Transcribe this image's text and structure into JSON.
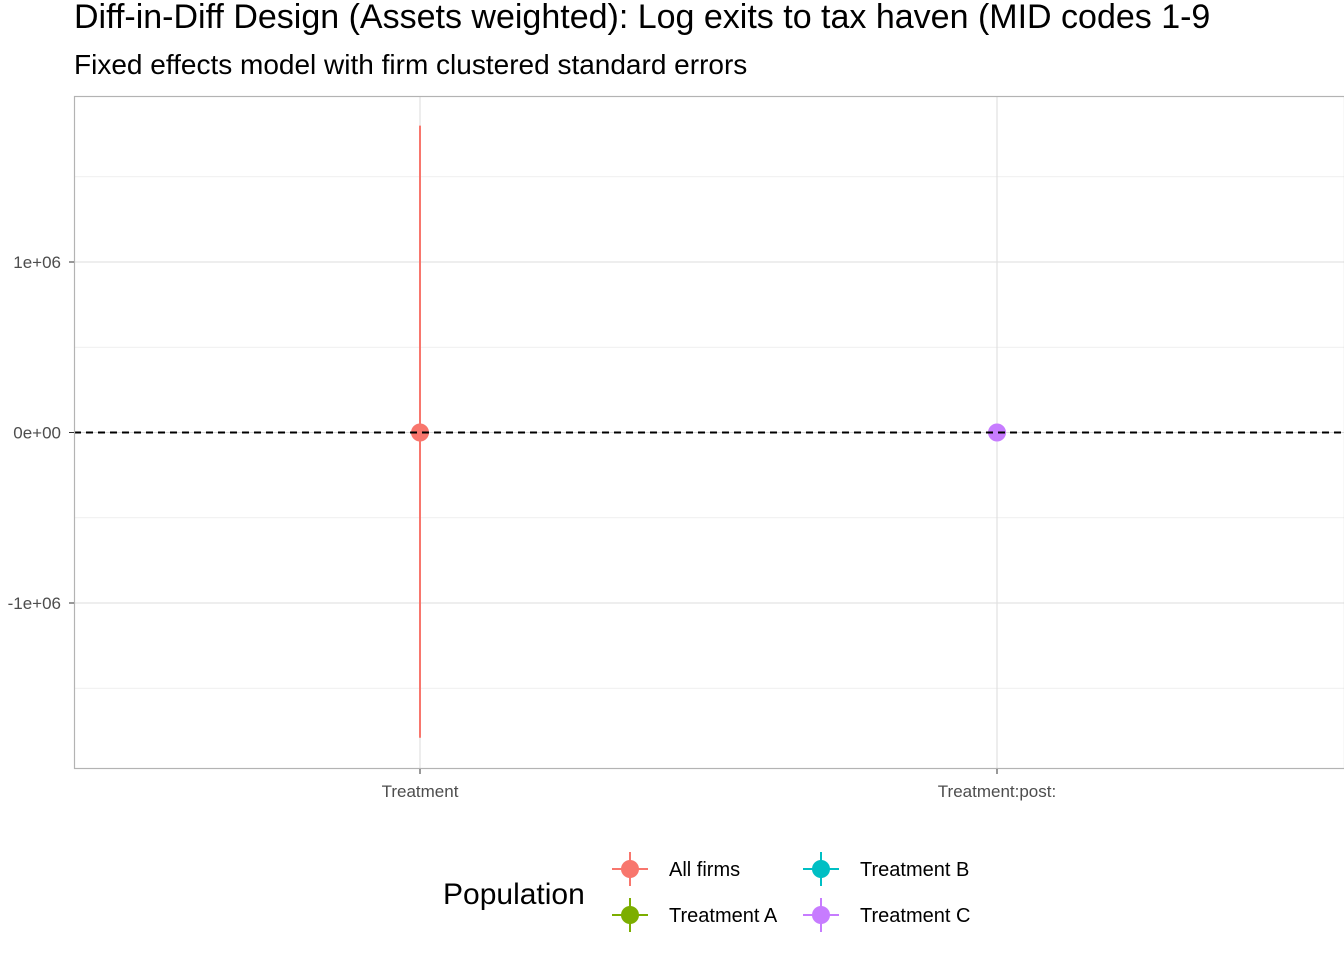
{
  "chart_data": {
    "type": "scatter",
    "title": "Diff-in-Diff Design (Assets weighted): Log exits to tax haven (MID codes 1-9",
    "subtitle": "Fixed effects model with firm clustered standard errors",
    "xlabel": "",
    "ylabel": "",
    "categories": [
      "Treatment",
      "Treatment:post:"
    ],
    "y_ticks": [
      -1000000,
      0,
      1000000
    ],
    "y_tick_labels": [
      "-1e+06",
      "0e+00",
      "1e+06"
    ],
    "ylim": [
      -1970000,
      1970000
    ],
    "grid": true,
    "reference_line": {
      "y": 0,
      "style": "dashed",
      "color": "#000000"
    },
    "series": [
      {
        "name": "All firms",
        "color": "#F8766D",
        "points": [
          {
            "category": "Treatment",
            "estimate": 0,
            "lower": -1790000,
            "upper": 1800000
          }
        ]
      },
      {
        "name": "Treatment A",
        "color": "#7CAE00",
        "points": []
      },
      {
        "name": "Treatment B",
        "color": "#00BFC4",
        "points": []
      },
      {
        "name": "Treatment C",
        "color": "#C77CFF",
        "points": [
          {
            "category": "Treatment:post:",
            "estimate": 0,
            "lower": 0,
            "upper": 0
          }
        ]
      }
    ],
    "legend": {
      "title": "Population",
      "position": "bottom",
      "items": [
        "All firms",
        "Treatment A",
        "Treatment B",
        "Treatment C"
      ]
    }
  }
}
